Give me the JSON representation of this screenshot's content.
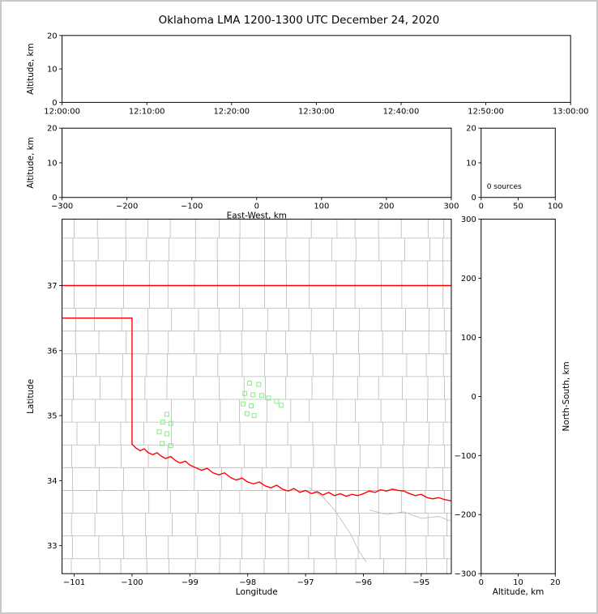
{
  "title": "Oklahoma LMA 1200-1300 UTC December 24, 2020",
  "colors": {
    "state_border": "#ff0000",
    "county_lines": "#b9b9b9",
    "stations": "#90EE90",
    "axis": "#000000",
    "background": "#ffffff",
    "figure_frame": "#c9c9c9"
  },
  "chart_data": [
    {
      "id": "time_height",
      "type": "scatter",
      "xlabel": "",
      "ylabel": "Altitude, km",
      "xlim": [
        0,
        3600
      ],
      "xticks": [
        0,
        600,
        1200,
        1800,
        2400,
        3000,
        3600
      ],
      "xtick_labels": [
        "12:00:00",
        "12:10:00",
        "12:20:00",
        "12:30:00",
        "12:40:00",
        "12:50:00",
        "13:00:00"
      ],
      "ylim": [
        0,
        20
      ],
      "yticks": [
        0,
        10,
        20
      ],
      "series": []
    },
    {
      "id": "ew_height",
      "type": "scatter",
      "xlabel": "East-West, km",
      "ylabel": "Altitude, km",
      "xlim": [
        -300,
        300
      ],
      "xticks": [
        -300,
        -200,
        -100,
        0,
        100,
        200,
        300
      ],
      "ylim": [
        0,
        20
      ],
      "yticks": [
        0,
        10,
        20
      ],
      "series": []
    },
    {
      "id": "source_histogram",
      "type": "histogram",
      "annotation": "0 sources",
      "xlim": [
        0,
        100
      ],
      "xticks": [
        0,
        50,
        100
      ],
      "ylim": [
        0,
        20
      ],
      "yticks": [
        0,
        10,
        20
      ],
      "series": []
    },
    {
      "id": "plan_view",
      "type": "scatter",
      "xlabel": "Longitude",
      "ylabel": "Latitude",
      "xlim": [
        -101.21,
        -94.48
      ],
      "xticks": [
        -101,
        -100,
        -99,
        -98,
        -97,
        -96,
        -95
      ],
      "ylim": [
        32.57,
        38.02
      ],
      "yticks": [
        33,
        34,
        35,
        36,
        37
      ],
      "series": [
        {
          "name": "LMA stations",
          "marker": "open-square",
          "color": "#90EE90",
          "points": [
            [
              -99.4,
              35.02
            ],
            [
              -99.47,
              34.9
            ],
            [
              -99.33,
              34.88
            ],
            [
              -99.53,
              34.75
            ],
            [
              -99.4,
              34.72
            ],
            [
              -99.48,
              34.57
            ],
            [
              -99.33,
              34.54
            ],
            [
              -97.97,
              35.5
            ],
            [
              -97.81,
              35.48
            ],
            [
              -98.05,
              35.34
            ],
            [
              -97.91,
              35.32
            ],
            [
              -97.76,
              35.31
            ],
            [
              -97.64,
              35.27
            ],
            [
              -98.08,
              35.18
            ],
            [
              -97.94,
              35.15
            ],
            [
              -97.5,
              35.22
            ],
            [
              -97.42,
              35.16
            ],
            [
              -98.01,
              35.03
            ],
            [
              -97.89,
              35.0
            ]
          ]
        }
      ]
    },
    {
      "id": "ns_height",
      "type": "scatter",
      "xlabel": "Altitude, km",
      "ylabel": "North-South, km",
      "ylabel_side": "right",
      "xlim": [
        0,
        20
      ],
      "xticks": [
        0,
        10,
        20
      ],
      "ylim": [
        -300,
        300
      ],
      "yticks": [
        -300,
        -200,
        -100,
        0,
        100,
        200,
        300
      ],
      "series": []
    }
  ],
  "map": {
    "county_lons": [
      -101.0,
      -100.6,
      -100.15,
      -99.75,
      -99.35,
      -98.9,
      -98.5,
      -98.1,
      -97.7,
      -97.3,
      -96.9,
      -96.5,
      -96.1,
      -95.7,
      -95.3,
      -94.9,
      -94.6
    ],
    "county_lats": [
      32.8,
      33.15,
      33.5,
      33.85,
      34.2,
      34.55,
      34.9,
      35.25,
      35.6,
      35.95,
      36.3,
      36.65,
      37.38,
      37.73
    ],
    "rivers": [
      [
        [
          -96.95,
          33.9
        ],
        [
          -96.7,
          33.75
        ],
        [
          -96.5,
          33.55
        ],
        [
          -96.35,
          33.35
        ],
        [
          -96.2,
          33.15
        ],
        [
          -96.1,
          32.95
        ],
        [
          -95.95,
          32.75
        ]
      ],
      [
        [
          -95.9,
          33.55
        ],
        [
          -95.6,
          33.48
        ],
        [
          -95.3,
          33.52
        ],
        [
          -95.0,
          33.42
        ],
        [
          -94.7,
          33.45
        ],
        [
          -94.5,
          33.38
        ]
      ]
    ],
    "state_lines": [
      [
        [
          -101.21,
          37.0
        ],
        [
          -94.48,
          37.0
        ]
      ],
      [
        [
          -101.21,
          36.5
        ],
        [
          -100.0,
          36.5
        ],
        [
          -100.0,
          34.56
        ],
        [
          -99.93,
          34.5
        ],
        [
          -99.86,
          34.46
        ],
        [
          -99.79,
          34.49
        ],
        [
          -99.72,
          34.43
        ],
        [
          -99.64,
          34.4
        ],
        [
          -99.57,
          34.43
        ],
        [
          -99.5,
          34.38
        ],
        [
          -99.42,
          34.34
        ],
        [
          -99.33,
          34.37
        ],
        [
          -99.25,
          34.31
        ],
        [
          -99.17,
          34.27
        ],
        [
          -99.08,
          34.3
        ],
        [
          -99.0,
          34.24
        ],
        [
          -98.9,
          34.2
        ],
        [
          -98.8,
          34.16
        ],
        [
          -98.7,
          34.19
        ],
        [
          -98.6,
          34.12
        ],
        [
          -98.5,
          34.09
        ],
        [
          -98.4,
          34.12
        ],
        [
          -98.3,
          34.05
        ],
        [
          -98.2,
          34.01
        ],
        [
          -98.1,
          34.04
        ],
        [
          -98.0,
          33.98
        ],
        [
          -97.9,
          33.95
        ],
        [
          -97.8,
          33.98
        ],
        [
          -97.7,
          33.92
        ],
        [
          -97.6,
          33.89
        ],
        [
          -97.5,
          33.93
        ],
        [
          -97.4,
          33.87
        ],
        [
          -97.3,
          33.84
        ],
        [
          -97.2,
          33.88
        ],
        [
          -97.1,
          33.82
        ],
        [
          -97.0,
          33.85
        ],
        [
          -96.9,
          33.8
        ],
        [
          -96.8,
          33.83
        ],
        [
          -96.7,
          33.78
        ],
        [
          -96.6,
          33.82
        ],
        [
          -96.5,
          33.77
        ],
        [
          -96.4,
          33.8
        ],
        [
          -96.3,
          33.76
        ],
        [
          -96.2,
          33.79
        ],
        [
          -96.1,
          33.77
        ],
        [
          -96.0,
          33.8
        ],
        [
          -95.9,
          33.84
        ],
        [
          -95.8,
          33.82
        ],
        [
          -95.7,
          33.86
        ],
        [
          -95.6,
          33.84
        ],
        [
          -95.5,
          33.87
        ],
        [
          -95.4,
          33.85
        ],
        [
          -95.3,
          33.84
        ],
        [
          -95.2,
          33.8
        ],
        [
          -95.1,
          33.77
        ],
        [
          -95.0,
          33.79
        ],
        [
          -94.9,
          33.74
        ],
        [
          -94.8,
          33.72
        ],
        [
          -94.7,
          33.74
        ],
        [
          -94.6,
          33.71
        ],
        [
          -94.48,
          33.69
        ]
      ]
    ]
  }
}
